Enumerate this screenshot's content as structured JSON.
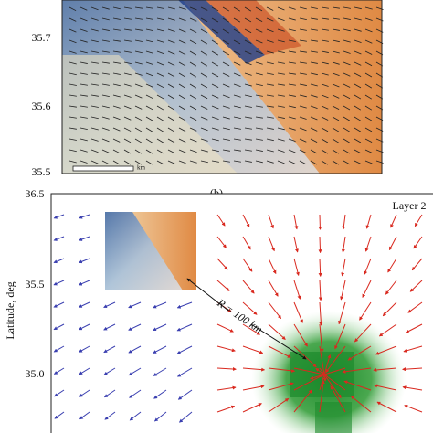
{
  "panel_a": {
    "yticks": [
      "35.7",
      "35.6",
      "35.5"
    ],
    "scale_unit": "km"
  },
  "panel_b": {
    "label": "(b)",
    "layer": "Layer 2",
    "yticks": [
      "36.5",
      "35.5",
      "35.0"
    ],
    "ylabel": "Latitude, deg",
    "annotation": "R = 100 km"
  }
}
